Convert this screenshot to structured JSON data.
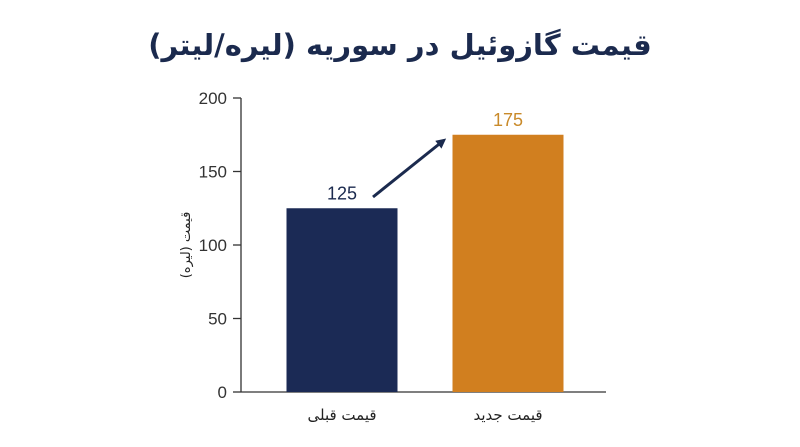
{
  "chart_data": {
    "type": "bar",
    "title": "قیمت گازوئیل در سوریه (لیره/لیتر)",
    "ylabel": "قیمت (لیره)",
    "xlabel": "",
    "categories": [
      "قیمت قبلی",
      "قیمت جدید"
    ],
    "values": [
      125,
      175
    ],
    "data_labels": [
      "125",
      "175"
    ],
    "colors": [
      "#1b2a55",
      "#d17f1f"
    ],
    "label_colors": [
      "#1b2a4e",
      "#c98a2a"
    ],
    "ylim": [
      0,
      200
    ],
    "yticks": [
      0,
      50,
      100,
      150,
      200
    ],
    "ytick_labels": [
      "0",
      "50",
      "100",
      "150",
      "200"
    ],
    "grid": false,
    "legend": "none",
    "annotation": "arrow-up-right"
  }
}
